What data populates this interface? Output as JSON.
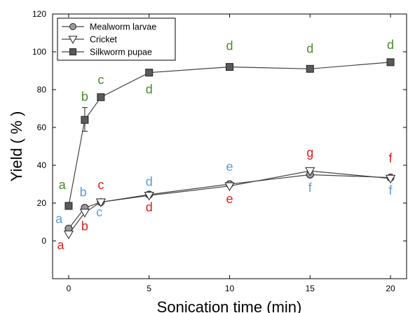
{
  "chart_data": {
    "type": "line",
    "xlabel": "Sonication time (min)",
    "ylabel": "Yield ( % )",
    "xlim": [
      -1,
      21
    ],
    "ylim": [
      -20,
      120
    ],
    "xticks": [
      "0",
      "5",
      "10",
      "15",
      "20"
    ],
    "yticks": [
      "0",
      "20",
      "40",
      "60",
      "80",
      "100",
      "120"
    ],
    "grid": false,
    "legend_position": "top-left",
    "x": [
      0,
      1,
      2,
      5,
      10,
      15,
      20
    ],
    "series": [
      {
        "name": "Mealworm larvae",
        "marker": "circle",
        "values": [
          6.5,
          17.5,
          20.5,
          24.5,
          30,
          35,
          33.5
        ]
      },
      {
        "name": "Cricket",
        "marker": "triangle-down",
        "values": [
          3.5,
          15,
          20.5,
          24,
          29,
          37,
          33
        ]
      },
      {
        "name": "Silkworm pupae",
        "marker": "square",
        "values": [
          18.5,
          64,
          76,
          89,
          92,
          91,
          94.5
        ],
        "error_bars": [
          {
            "x": 1,
            "low": 58,
            "high": 70.5
          }
        ]
      }
    ],
    "annotations": [
      {
        "text": "a",
        "x": -0.4,
        "y": 27.5,
        "color": "#4a8a2a"
      },
      {
        "text": "b",
        "x": 1,
        "y": 74,
        "color": "#4a8a2a"
      },
      {
        "text": "c",
        "x": 2,
        "y": 83,
        "color": "#4a8a2a"
      },
      {
        "text": "d",
        "x": 5,
        "y": 78,
        "color": "#4a8a2a"
      },
      {
        "text": "d",
        "x": 10,
        "y": 101,
        "color": "#4a8a2a"
      },
      {
        "text": "d",
        "x": 15,
        "y": 99.5,
        "color": "#4a8a2a"
      },
      {
        "text": "d",
        "x": 20,
        "y": 101.5,
        "color": "#4a8a2a"
      },
      {
        "text": "a",
        "x": -0.6,
        "y": 9.5,
        "color": "#5b9bd5"
      },
      {
        "text": "b",
        "x": 0.9,
        "y": 23.5,
        "color": "#5b9bd5"
      },
      {
        "text": "c",
        "x": 1.9,
        "y": 13,
        "color": "#5b9bd5"
      },
      {
        "text": "d",
        "x": 5,
        "y": 29,
        "color": "#5b9bd5"
      },
      {
        "text": "e",
        "x": 10,
        "y": 37,
        "color": "#5b9bd5"
      },
      {
        "text": "f",
        "x": 15,
        "y": 26,
        "color": "#5b9bd5"
      },
      {
        "text": "f",
        "x": 20,
        "y": 24.5,
        "color": "#5b9bd5"
      },
      {
        "text": "a",
        "x": -0.5,
        "y": -4.5,
        "color": "#e02020"
      },
      {
        "text": "b",
        "x": 1,
        "y": 5.5,
        "color": "#e02020"
      },
      {
        "text": "c",
        "x": 2,
        "y": 27.5,
        "color": "#e02020"
      },
      {
        "text": "d",
        "x": 5,
        "y": 15.5,
        "color": "#e02020"
      },
      {
        "text": "e",
        "x": 10,
        "y": 20,
        "color": "#e02020"
      },
      {
        "text": "g",
        "x": 15,
        "y": 44.5,
        "color": "#e02020"
      },
      {
        "text": "f",
        "x": 20,
        "y": 41.5,
        "color": "#e02020"
      }
    ]
  }
}
